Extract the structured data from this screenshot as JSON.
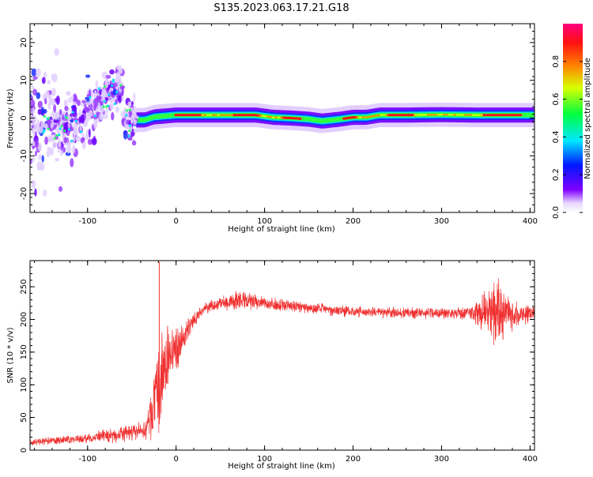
{
  "figure": {
    "title": "S135.2023.063.17.21.G18"
  },
  "chart_data": [
    {
      "type": "heatmap",
      "xlabel": "Height of straight line (km)",
      "ylabel": "Frequency (Hz)",
      "xlim": [
        -165,
        405
      ],
      "ylim": [
        -25,
        25
      ],
      "xticks": [
        -100,
        0,
        100,
        200,
        300,
        400
      ],
      "yticks": [
        -20,
        -10,
        0,
        10,
        20
      ],
      "colorbar": {
        "label": "Normalized spectral amplitude",
        "range": [
          0,
          1
        ],
        "ticks": [
          0.0,
          0.2,
          0.4,
          0.6,
          0.8
        ]
      },
      "ridge": {
        "x": [
          -35,
          -25,
          0,
          30,
          60,
          90,
          110,
          130,
          150,
          165,
          185,
          200,
          215,
          230,
          260,
          300,
          340,
          400
        ],
        "frequency": [
          -0.5,
          0.3,
          0.8,
          0.8,
          0.8,
          0.8,
          0.2,
          0,
          -0.3,
          -0.8,
          -0.3,
          0.2,
          0.2,
          0.8,
          0.8,
          0.9,
          0.8,
          0.8
        ]
      },
      "scatter_region": {
        "x_range": [
          -165,
          -45
        ],
        "frequency_range": [
          -25,
          25
        ]
      }
    },
    {
      "type": "line",
      "xlabel": "Height of straight line (km)",
      "ylabel": "SNR (10 * v/v)",
      "xlim": [
        -165,
        405
      ],
      "ylim": [
        0,
        290
      ],
      "xticks": [
        -100,
        0,
        100,
        200,
        300,
        400
      ],
      "yticks": [
        0,
        50,
        100,
        150,
        200,
        250
      ],
      "color": "#f03030",
      "envelope": {
        "x": [
          -165,
          -100,
          -60,
          -35,
          -30,
          -20,
          -10,
          0,
          10,
          20,
          30,
          50,
          70,
          100,
          150,
          200,
          250,
          300,
          330,
          350,
          365,
          380,
          400,
          405
        ],
        "center": [
          12,
          18,
          25,
          30,
          45,
          90,
          140,
          155,
          175,
          200,
          215,
          225,
          228,
          225,
          218,
          212,
          210,
          210,
          210,
          210,
          210,
          205,
          210,
          210
        ],
        "spread": [
          6,
          8,
          15,
          15,
          40,
          80,
          60,
          40,
          25,
          15,
          10,
          12,
          18,
          12,
          10,
          10,
          10,
          10,
          12,
          40,
          60,
          25,
          15,
          12
        ]
      },
      "spike": {
        "x": -19,
        "snr": 288
      }
    }
  ]
}
